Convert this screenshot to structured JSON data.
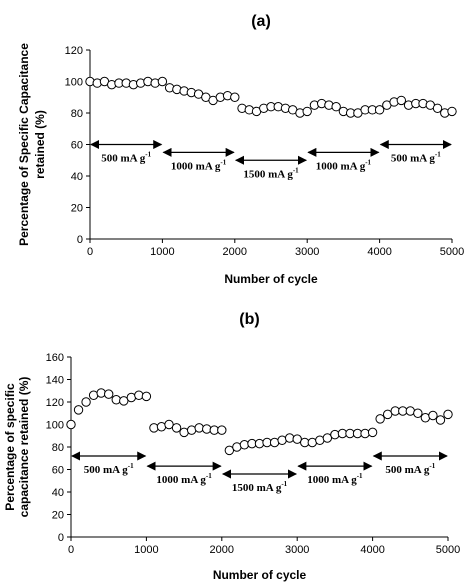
{
  "chart_data": [
    {
      "type": "scatter",
      "panel_label": "(a)",
      "xlabel": "Number of cycle",
      "ylabel_lines": [
        "Percentage of Specific Capacitance",
        "retained (%)"
      ],
      "xlim": [
        0,
        5000
      ],
      "ylim": [
        0,
        120
      ],
      "xticks": [
        "0",
        "1000",
        "2000",
        "3000",
        "4000",
        "5000"
      ],
      "yticks": [
        "0",
        "20",
        "40",
        "60",
        "80",
        "100",
        "120"
      ],
      "grid": false,
      "marker": "open-circle",
      "x": [
        0,
        100,
        200,
        300,
        400,
        500,
        600,
        700,
        800,
        900,
        1000,
        1100,
        1200,
        1300,
        1400,
        1500,
        1600,
        1700,
        1800,
        1900,
        2000,
        2100,
        2200,
        2300,
        2400,
        2500,
        2600,
        2700,
        2800,
        2900,
        3000,
        3100,
        3200,
        3300,
        3400,
        3500,
        3600,
        3700,
        3800,
        3900,
        4000,
        4100,
        4200,
        4300,
        4400,
        4500,
        4600,
        4700,
        4800,
        4900,
        5000
      ],
      "y": [
        100,
        99,
        100,
        98,
        99,
        99,
        98,
        99,
        100,
        99,
        100,
        96,
        95,
        94,
        93,
        92,
        90,
        88,
        90,
        91,
        90,
        83,
        82,
        81,
        83,
        84,
        84,
        83,
        82,
        80,
        81,
        85,
        86,
        85,
        84,
        81,
        80,
        80,
        82,
        82,
        82,
        85,
        87,
        88,
        85,
        86,
        86,
        85,
        83,
        80,
        81
      ],
      "regions": [
        {
          "label": "500 mA g",
          "sup": "-1",
          "x_start": 0,
          "x_end": 1000,
          "y": 60
        },
        {
          "label": "1000 mA g",
          "sup": "-1",
          "x_start": 1000,
          "x_end": 2000,
          "y": 55
        },
        {
          "label": "1500 mA g",
          "sup": "-1",
          "x_start": 2000,
          "x_end": 3000,
          "y": 50
        },
        {
          "label": "1000 mA g",
          "sup": "-1",
          "x_start": 3000,
          "x_end": 4000,
          "y": 55
        },
        {
          "label": "500 mA g",
          "sup": "-1",
          "x_start": 4000,
          "x_end": 5000,
          "y": 60
        }
      ]
    },
    {
      "type": "scatter",
      "panel_label": "(b)",
      "xlabel": "Number of cycle",
      "ylabel_lines": [
        "Percentage of specific",
        "capacitance retained (%)"
      ],
      "xlim": [
        0,
        5000
      ],
      "ylim": [
        0,
        160
      ],
      "xticks": [
        "0",
        "1000",
        "2000",
        "3000",
        "4000",
        "5000"
      ],
      "yticks": [
        "0",
        "20",
        "40",
        "60",
        "80",
        "100",
        "120",
        "140",
        "160"
      ],
      "grid": false,
      "marker": "open-circle",
      "x": [
        0,
        100,
        200,
        300,
        400,
        500,
        600,
        700,
        800,
        900,
        1000,
        1100,
        1200,
        1300,
        1400,
        1500,
        1600,
        1700,
        1800,
        1900,
        2000,
        2100,
        2200,
        2300,
        2400,
        2500,
        2600,
        2700,
        2800,
        2900,
        3000,
        3100,
        3200,
        3300,
        3400,
        3500,
        3600,
        3700,
        3800,
        3900,
        4000,
        4100,
        4200,
        4300,
        4400,
        4500,
        4600,
        4700,
        4800,
        4900,
        5000
      ],
      "y": [
        100,
        113,
        120,
        126,
        128,
        127,
        122,
        121,
        124,
        126,
        125,
        97,
        98,
        100,
        97,
        93,
        95,
        97,
        96,
        95,
        95,
        77,
        80,
        82,
        83,
        83,
        84,
        84,
        86,
        88,
        87,
        84,
        84,
        86,
        88,
        91,
        92,
        92,
        92,
        92,
        93,
        105,
        109,
        112,
        112,
        112,
        110,
        106,
        108,
        104,
        109
      ],
      "regions": [
        {
          "label": "500 mA g",
          "sup": "-1",
          "x_start": 0,
          "x_end": 1000,
          "y": 72
        },
        {
          "label": "1000 mA g",
          "sup": "-1",
          "x_start": 1000,
          "x_end": 2000,
          "y": 63
        },
        {
          "label": "1500 mA g",
          "sup": "-1",
          "x_start": 2000,
          "x_end": 3000,
          "y": 56
        },
        {
          "label": "1000 mA g",
          "sup": "-1",
          "x_start": 3000,
          "x_end": 4000,
          "y": 63
        },
        {
          "label": "500 mA g",
          "sup": "-1",
          "x_start": 4000,
          "x_end": 5000,
          "y": 72
        }
      ]
    }
  ]
}
